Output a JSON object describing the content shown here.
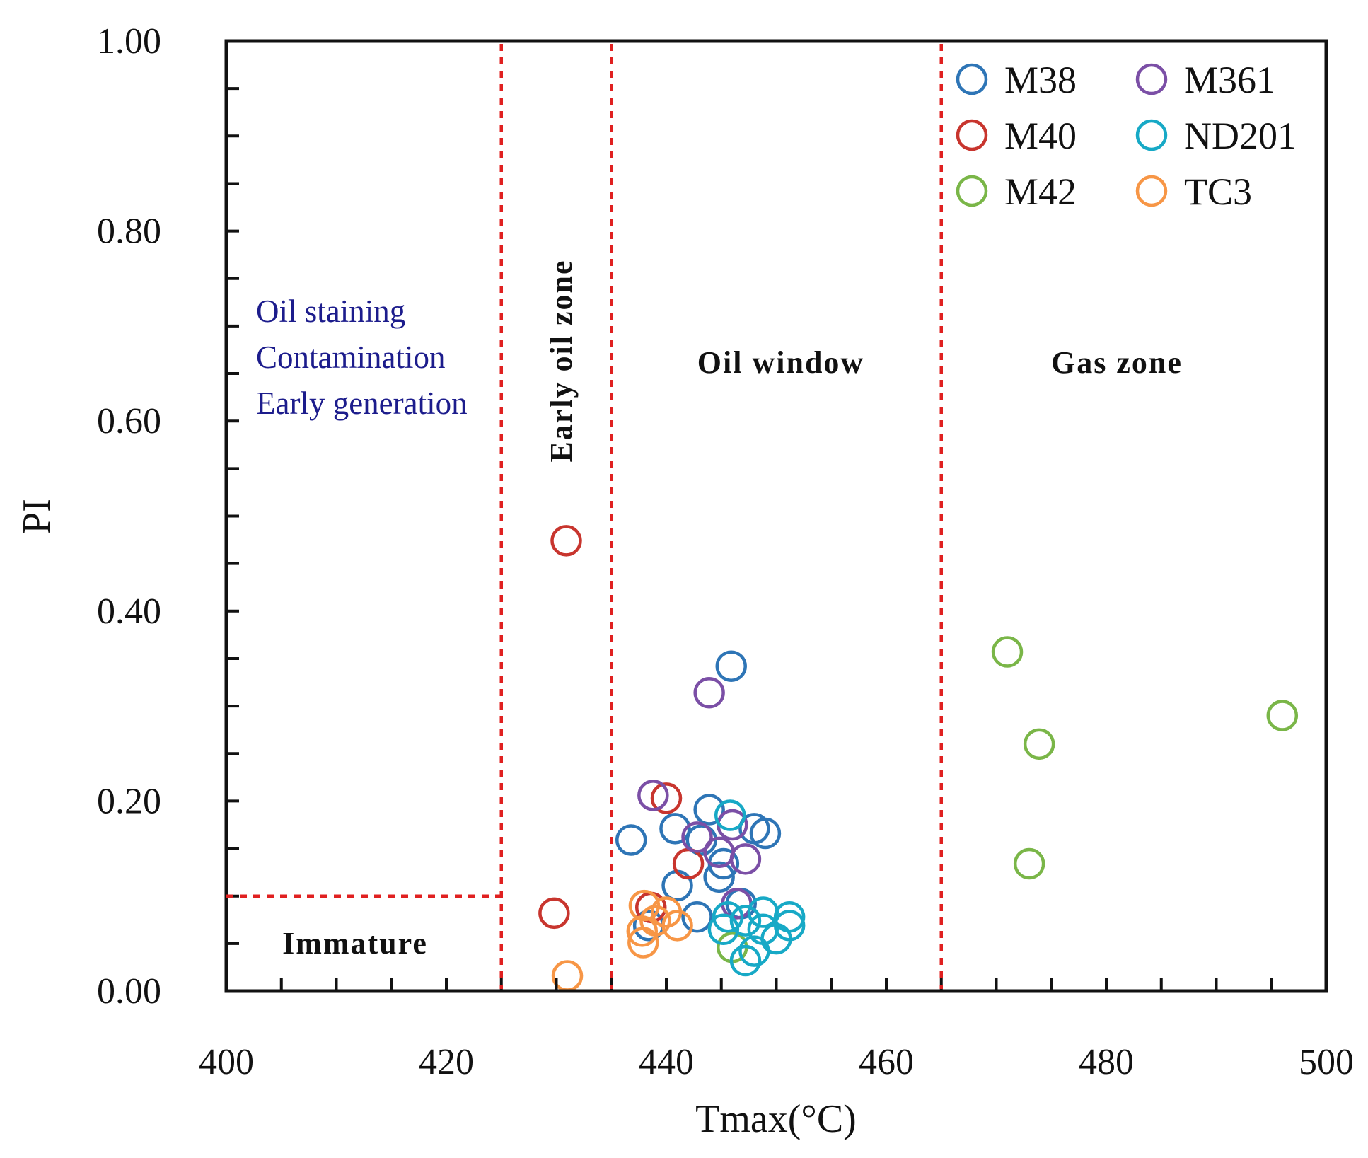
{
  "chart_data": {
    "type": "scatter",
    "xlabel": "Tmax(°C)",
    "ylabel": "PI",
    "xlim": [
      400,
      500
    ],
    "ylim": [
      0,
      1.0
    ],
    "x_ticks": [
      "400",
      "420",
      "440",
      "460",
      "480",
      "500"
    ],
    "y_ticks": [
      "0.00",
      "0.20",
      "0.40",
      "0.60",
      "0.80",
      "1.00"
    ],
    "legend_placement": "top-right",
    "zone_labels": {
      "oil_staining": "Oil  staining",
      "contamination": "Contamination",
      "early_generation": "Early  generation",
      "early_oil_zone": "Early oil zone",
      "oil_window": "Oil window",
      "gas_zone": "Gas zone",
      "immature": "Immature"
    },
    "boundaries": {
      "tmax": [
        425,
        435,
        465
      ],
      "pi_immature": 0.1
    },
    "boundary_color": "#e02020",
    "series": [
      {
        "name": "M38",
        "color": "#2e75b6",
        "points": [
          [
            445.9,
            0.342
          ],
          [
            436.8,
            0.159
          ],
          [
            443.9,
            0.191
          ],
          [
            440.8,
            0.171
          ],
          [
            448.0,
            0.171
          ],
          [
            449.0,
            0.166
          ],
          [
            443.2,
            0.159
          ],
          [
            445.2,
            0.134
          ],
          [
            441.0,
            0.111
          ],
          [
            442.8,
            0.078
          ],
          [
            438.4,
            0.069
          ],
          [
            446.8,
            0.092
          ],
          [
            444.8,
            0.12
          ]
        ]
      },
      {
        "name": "M40",
        "color": "#c8352e",
        "points": [
          [
            430.9,
            0.474
          ],
          [
            429.8,
            0.082
          ],
          [
            440.0,
            0.203
          ],
          [
            442.0,
            0.134
          ],
          [
            438.6,
            0.088
          ]
        ]
      },
      {
        "name": "M42",
        "color": "#7ab648",
        "points": [
          [
            471.0,
            0.357
          ],
          [
            473.9,
            0.26
          ],
          [
            496.0,
            0.29
          ],
          [
            473.0,
            0.134
          ],
          [
            446.0,
            0.046
          ]
        ]
      },
      {
        "name": "M361",
        "color": "#7b4fa6",
        "points": [
          [
            443.9,
            0.314
          ],
          [
            438.8,
            0.206
          ],
          [
            442.8,
            0.162
          ],
          [
            446.0,
            0.175
          ],
          [
            447.2,
            0.139
          ],
          [
            446.4,
            0.092
          ],
          [
            444.8,
            0.146
          ]
        ]
      },
      {
        "name": "ND201",
        "color": "#17a9c6",
        "points": [
          [
            445.8,
            0.185
          ],
          [
            445.2,
            0.065
          ],
          [
            447.2,
            0.074
          ],
          [
            448.8,
            0.083
          ],
          [
            451.2,
            0.078
          ],
          [
            451.2,
            0.069
          ],
          [
            450.0,
            0.055
          ],
          [
            447.2,
            0.032
          ],
          [
            448.0,
            0.042
          ],
          [
            445.6,
            0.078
          ],
          [
            448.8,
            0.065
          ]
        ]
      },
      {
        "name": "TC3",
        "color": "#f79646",
        "points": [
          [
            431.0,
            0.016
          ],
          [
            438.0,
            0.09
          ],
          [
            437.8,
            0.063
          ],
          [
            437.9,
            0.051
          ],
          [
            440.0,
            0.083
          ],
          [
            441.0,
            0.069
          ],
          [
            439.0,
            0.074
          ]
        ]
      }
    ]
  }
}
